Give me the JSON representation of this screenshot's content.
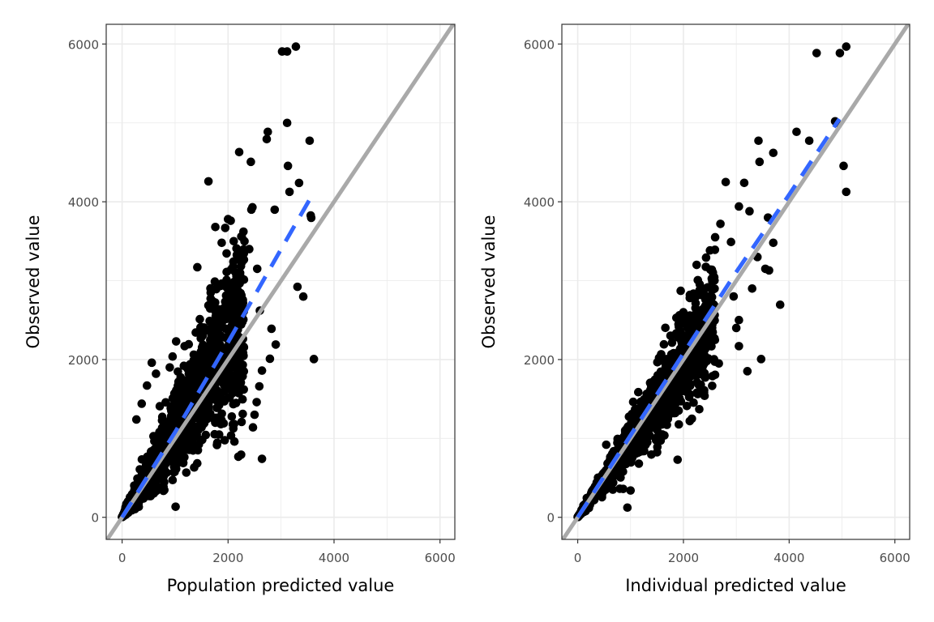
{
  "chart_data": [
    {
      "type": "scatter",
      "title": "",
      "xlabel": "Population predicted value",
      "ylabel": "Observed value",
      "xlim": [
        -300,
        6280
      ],
      "ylim": [
        -280,
        6250
      ],
      "xticks": [
        0,
        2000,
        4000,
        6000
      ],
      "yticks": [
        0,
        2000,
        4000,
        6000
      ],
      "xtick_labels": [
        "0",
        "2000",
        "4000",
        "6000"
      ],
      "ytick_labels": [
        "0",
        "2000",
        "4000",
        "6000"
      ],
      "grid": true,
      "reference_line": {
        "name": "identity",
        "slope": 1,
        "intercept": 0,
        "color": "#a9a9a9",
        "style": "solid"
      },
      "trend_line": {
        "name": "loess-fit",
        "color": "#3366ff",
        "style": "dashed",
        "points": [
          [
            0,
            0
          ],
          [
            1000,
            1080
          ],
          [
            2000,
            2220
          ],
          [
            3000,
            3400
          ],
          [
            3600,
            4100
          ]
        ]
      },
      "point_color": "#000000",
      "dense_cloud": {
        "count": 1400,
        "x_max": 2300,
        "slope": 1.12,
        "spread": 0.32,
        "seed": 11
      },
      "outliers": [
        [
          3020,
          5905
        ],
        [
          3115,
          5905
        ],
        [
          3280,
          5967
        ],
        [
          3115,
          5000
        ],
        [
          2750,
          4887
        ],
        [
          2730,
          4794
        ],
        [
          3540,
          4774
        ],
        [
          2210,
          4630
        ],
        [
          2430,
          4506
        ],
        [
          3130,
          4455
        ],
        [
          1630,
          4259
        ],
        [
          3340,
          4239
        ],
        [
          3160,
          4126
        ],
        [
          2460,
          3930
        ],
        [
          2440,
          3900
        ],
        [
          2880,
          3900
        ],
        [
          3560,
          3827
        ],
        [
          3570,
          3796
        ],
        [
          2000,
          3780
        ],
        [
          2050,
          3760
        ],
        [
          1760,
          3680
        ],
        [
          2250,
          3560
        ],
        [
          2310,
          3500
        ],
        [
          1880,
          3480
        ],
        [
          2400,
          3400
        ],
        [
          1420,
          3170
        ],
        [
          2550,
          3150
        ],
        [
          3310,
          2922
        ],
        [
          3420,
          2798
        ],
        [
          2600,
          2620
        ],
        [
          2820,
          2390
        ],
        [
          2900,
          2190
        ],
        [
          2790,
          2010
        ],
        [
          3620,
          2006
        ],
        [
          2640,
          1860
        ],
        [
          2590,
          1660
        ],
        [
          2540,
          1460
        ],
        [
          2500,
          1300
        ],
        [
          2470,
          1140
        ],
        [
          2120,
          960
        ],
        [
          2640,
          741
        ],
        [
          1010,
          134
        ],
        [
          1020,
          2230
        ],
        [
          1180,
          2170
        ],
        [
          560,
          1960
        ],
        [
          470,
          1670
        ],
        [
          370,
          1440
        ],
        [
          270,
          1240
        ],
        [
          900,
          1900
        ],
        [
          640,
          1820
        ]
      ]
    },
    {
      "type": "scatter",
      "title": "",
      "xlabel": "Individual predicted value",
      "ylabel": "Observed value",
      "xlim": [
        -300,
        6280
      ],
      "ylim": [
        -280,
        6250
      ],
      "xticks": [
        0,
        2000,
        4000,
        6000
      ],
      "yticks": [
        0,
        2000,
        4000,
        6000
      ],
      "xtick_labels": [
        "0",
        "2000",
        "4000",
        "6000"
      ],
      "ytick_labels": [
        "0",
        "2000",
        "4000",
        "6000"
      ],
      "grid": true,
      "reference_line": {
        "name": "identity",
        "slope": 1,
        "intercept": 0,
        "color": "#a9a9a9",
        "style": "solid"
      },
      "trend_line": {
        "name": "loess-fit",
        "color": "#3366ff",
        "style": "dashed",
        "points": [
          [
            0,
            0
          ],
          [
            1000,
            1040
          ],
          [
            2000,
            2080
          ],
          [
            3000,
            3110
          ],
          [
            4000,
            4090
          ],
          [
            4950,
            5050
          ]
        ]
      },
      "point_color": "#000000",
      "dense_cloud": {
        "count": 1400,
        "x_max": 2600,
        "slope": 0.98,
        "spread": 0.17,
        "seed": 23
      },
      "outliers": [
        [
          4520,
          5885
        ],
        [
          4960,
          5885
        ],
        [
          5080,
          5967
        ],
        [
          4870,
          5020
        ],
        [
          4140,
          4887
        ],
        [
          4380,
          4774
        ],
        [
          3420,
          4774
        ],
        [
          3700,
          4620
        ],
        [
          3440,
          4506
        ],
        [
          5030,
          4455
        ],
        [
          5080,
          4126
        ],
        [
          2800,
          4250
        ],
        [
          3150,
          4240
        ],
        [
          3050,
          3940
        ],
        [
          3250,
          3880
        ],
        [
          3600,
          3800
        ],
        [
          2700,
          3720
        ],
        [
          2250,
          3200
        ],
        [
          2600,
          3550
        ],
        [
          2900,
          3490
        ],
        [
          3700,
          3480
        ],
        [
          3620,
          3130
        ],
        [
          3550,
          3150
        ],
        [
          3300,
          2900
        ],
        [
          3830,
          2695
        ],
        [
          3050,
          2500
        ],
        [
          3000,
          2400
        ],
        [
          3470,
          2006
        ],
        [
          3210,
          1852
        ],
        [
          3050,
          2170
        ],
        [
          2670,
          1950
        ],
        [
          2550,
          1790
        ],
        [
          2400,
          1540
        ],
        [
          2300,
          1370
        ],
        [
          2120,
          1220
        ],
        [
          1890,
          730
        ],
        [
          1600,
          1050
        ],
        [
          1270,
          1480
        ],
        [
          940,
          123
        ],
        [
          540,
          920
        ],
        [
          860,
          360
        ],
        [
          1000,
          340
        ],
        [
          4900,
          5000
        ],
        [
          3400,
          3300
        ],
        [
          2950,
          2800
        ]
      ]
    }
  ]
}
